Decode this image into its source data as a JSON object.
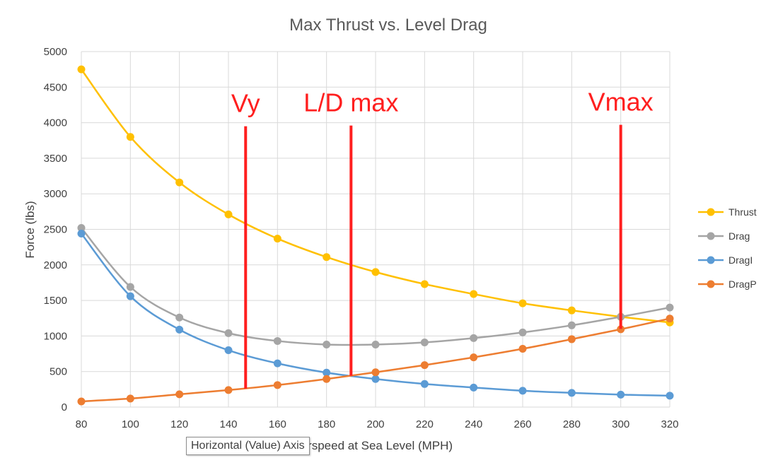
{
  "chart_data": {
    "type": "line",
    "title": "Max Thrust vs. Level Drag",
    "xlabel": "Airspeed at Sea Level (MPH)",
    "ylabel": "Force (lbs)",
    "xlim": [
      80,
      320
    ],
    "ylim": [
      0,
      5000
    ],
    "xticks": [
      80,
      100,
      120,
      140,
      160,
      180,
      200,
      220,
      240,
      260,
      280,
      300,
      320
    ],
    "yticks": [
      0,
      500,
      1000,
      1500,
      2000,
      2500,
      3000,
      3500,
      4000,
      4500,
      5000
    ],
    "grid": "vertical and horizontal",
    "legend_position": "right",
    "x": [
      80,
      100,
      120,
      140,
      160,
      180,
      200,
      220,
      240,
      260,
      280,
      300,
      320
    ],
    "series": [
      {
        "name": "Thrust",
        "color": "#ffc000",
        "values": [
          4750,
          3800,
          3160,
          2710,
          2370,
          2110,
          1900,
          1730,
          1590,
          1460,
          1360,
          1270,
          1190
        ]
      },
      {
        "name": "Drag",
        "color": "#a5a5a5",
        "values": [
          2520,
          1690,
          1260,
          1040,
          930,
          880,
          880,
          910,
          970,
          1050,
          1150,
          1270,
          1400
        ]
      },
      {
        "name": "DragI",
        "color": "#5b9bd5",
        "values": [
          2440,
          1560,
          1090,
          800,
          615,
          485,
          395,
          325,
          275,
          230,
          200,
          175,
          160
        ]
      },
      {
        "name": "DragP",
        "color": "#ed7d31",
        "values": [
          80,
          120,
          180,
          240,
          310,
          395,
          490,
          590,
          700,
          820,
          955,
          1095,
          1245
        ]
      }
    ],
    "annotations": [
      {
        "label": "Vy",
        "x": 147,
        "y_bottom": 260,
        "y_top": 3950
      },
      {
        "label": "L/D max",
        "x": 190,
        "y_bottom": 440,
        "y_top": 3960
      },
      {
        "label": "Vmax",
        "x": 300,
        "y_bottom": 1100,
        "y_top": 3970
      }
    ],
    "annotation_color": "#ff1f1f"
  },
  "tooltip": {
    "text": "Horizontal (Value) Axis"
  }
}
